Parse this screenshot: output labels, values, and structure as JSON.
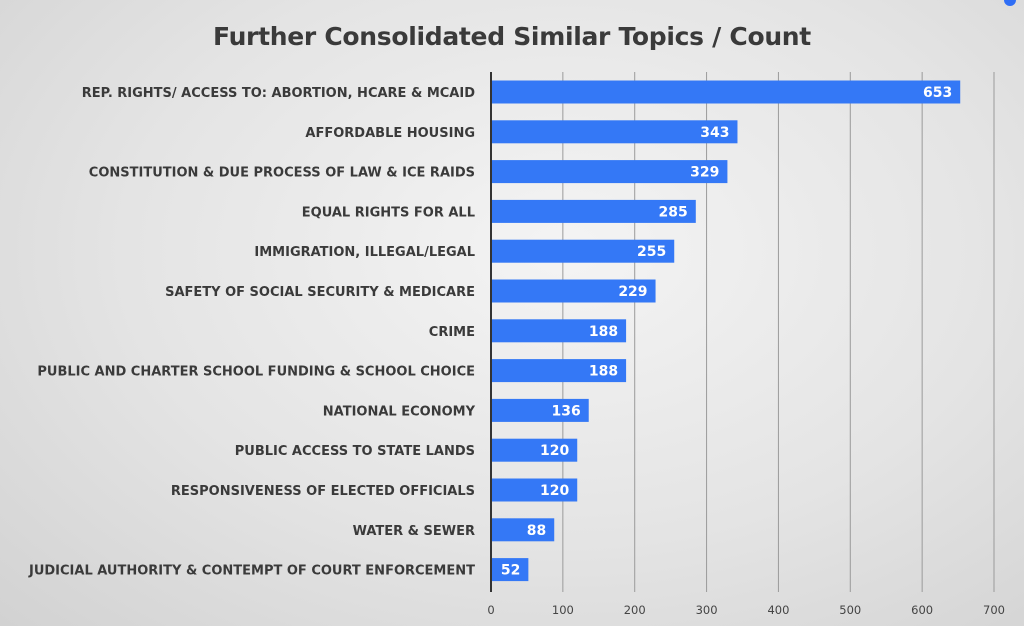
{
  "chart_data": {
    "type": "bar",
    "orientation": "horizontal",
    "title": "Further Consolidated Similar Topics / Count",
    "categories": [
      "REP. RIGHTS/ ACCESS TO: ABORTION, HCARE & MCAID",
      "AFFORDABLE HOUSING",
      "CONSTITUTION & DUE PROCESS OF LAW & ICE RAIDS",
      "EQUAL RIGHTS FOR ALL",
      "IMMIGRATION, ILLEGAL/LEGAL",
      "SAFETY OF SOCIAL SECURITY & MEDICARE",
      "CRIME",
      "PUBLIC AND CHARTER SCHOOL FUNDING & SCHOOL CHOICE",
      "NATIONAL ECONOMY",
      "PUBLIC ACCESS TO STATE LANDS",
      "RESPONSIVENESS OF ELECTED OFFICIALS",
      "WATER & SEWER",
      "JUDICIAL AUTHORITY & CONTEMPT OF COURT ENFORCEMENT"
    ],
    "values": [
      653,
      343,
      329,
      285,
      255,
      229,
      188,
      188,
      136,
      120,
      120,
      88,
      52
    ],
    "xlim": [
      0,
      700
    ],
    "xticks": [
      0,
      100,
      200,
      300,
      400,
      500,
      600,
      700
    ],
    "grid": true,
    "data_labels": true,
    "colors": {
      "bar": "#3478f6",
      "text": "#3a3a3a",
      "value_text": "#ffffff"
    }
  }
}
